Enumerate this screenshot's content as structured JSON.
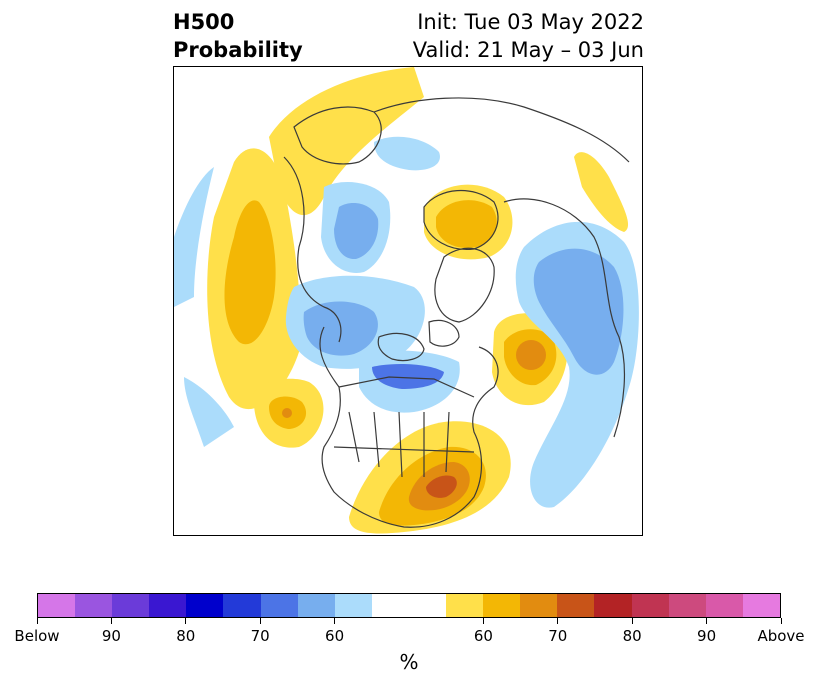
{
  "header": {
    "title_line1": "H500",
    "title_line2": "Probability",
    "init_label": "Init: Tue 03 May 2022",
    "valid_label": "Valid: 21 May – 03 Jun"
  },
  "colorbar": {
    "unit": "%",
    "tick_labels": [
      "Below",
      "90",
      "80",
      "70",
      "60",
      "60",
      "70",
      "80",
      "90",
      "Above"
    ],
    "below_colors": [
      "#d576e8",
      "#9a55e0",
      "#6b3bd9",
      "#3a17d1",
      "#0000cc",
      "#233ad8",
      "#4c74e6",
      "#77aeee",
      "#abdcfb"
    ],
    "neutral_color": "#ffffff",
    "above_colors": [
      "#ffe04a",
      "#f3b705",
      "#e28c10",
      "#c85418",
      "#b32325",
      "#c03452",
      "#cd4a7e",
      "#d959a9",
      "#e67ae0"
    ]
  },
  "map": {
    "land_outline_color": "#3a3a3a",
    "below_light": "#abdcfb",
    "below_medium": "#77aeee",
    "below_strong": "#4c74e6",
    "above_light": "#ffe04a",
    "above_medium": "#f3b705",
    "above_strong": "#e28c10",
    "above_stronger": "#c85418"
  }
}
